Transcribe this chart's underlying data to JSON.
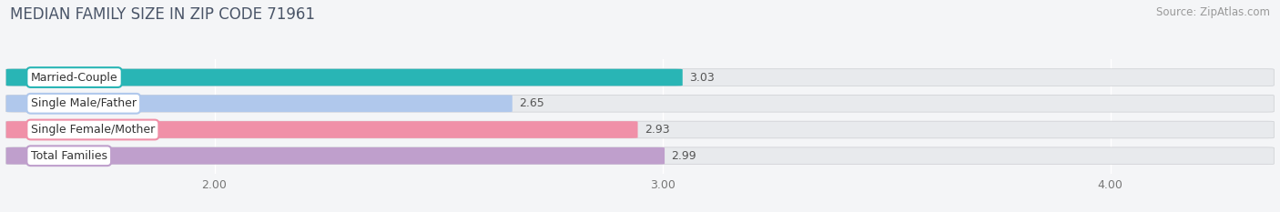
{
  "title": "MEDIAN FAMILY SIZE IN ZIP CODE 71961",
  "source": "Source: ZipAtlas.com",
  "categories": [
    "Married-Couple",
    "Single Male/Father",
    "Single Female/Mother",
    "Total Families"
  ],
  "values": [
    3.03,
    2.65,
    2.93,
    2.99
  ],
  "bar_colors": [
    "#29b5b5",
    "#b0c8ec",
    "#f090a8",
    "#bf9fcc"
  ],
  "xlim_left": 1.55,
  "xlim_right": 4.35,
  "xstart": 1.55,
  "xticks": [
    2.0,
    3.0,
    4.0
  ],
  "xtick_labels": [
    "2.00",
    "3.00",
    "4.00"
  ],
  "bar_height": 0.62,
  "bar_gap": 0.38,
  "bg_bar_color": "#e8eaed",
  "fig_bg_color": "#f4f5f7",
  "title_fontsize": 12,
  "source_fontsize": 8.5,
  "label_fontsize": 9,
  "value_fontsize": 9,
  "tick_fontsize": 9
}
